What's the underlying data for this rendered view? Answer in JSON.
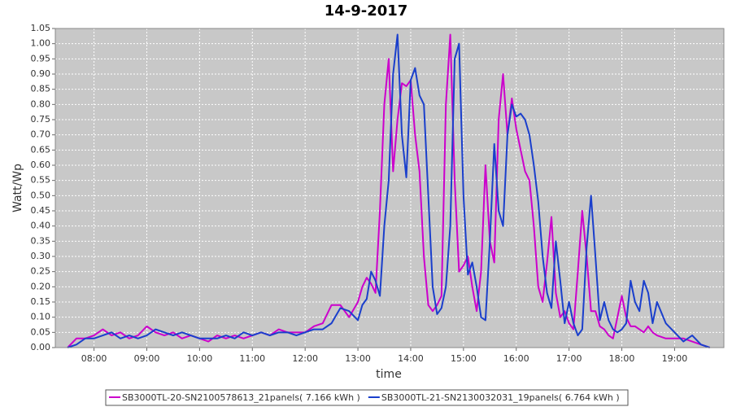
{
  "chart_data": {
    "type": "line",
    "title": "14-9-2017",
    "x_label": "time",
    "y_label": "Watt/Wp",
    "x": [
      "07:30",
      "07:40",
      "07:50",
      "08:00",
      "08:10",
      "08:20",
      "08:30",
      "08:40",
      "08:50",
      "09:00",
      "09:10",
      "09:20",
      "09:30",
      "09:40",
      "09:50",
      "10:00",
      "10:10",
      "10:20",
      "10:30",
      "10:40",
      "10:50",
      "11:00",
      "11:10",
      "11:20",
      "11:30",
      "11:40",
      "11:50",
      "12:00",
      "12:10",
      "12:20",
      "12:30",
      "12:40",
      "12:50",
      "13:00",
      "13:05",
      "13:10",
      "13:15",
      "13:20",
      "13:25",
      "13:30",
      "13:35",
      "13:40",
      "13:45",
      "13:50",
      "13:55",
      "14:00",
      "14:05",
      "14:10",
      "14:15",
      "14:20",
      "14:25",
      "14:30",
      "14:35",
      "14:40",
      "14:45",
      "14:50",
      "14:55",
      "15:00",
      "15:05",
      "15:10",
      "15:15",
      "15:20",
      "15:25",
      "15:30",
      "15:35",
      "15:40",
      "15:45",
      "15:50",
      "15:55",
      "16:00",
      "16:05",
      "16:10",
      "16:15",
      "16:20",
      "16:25",
      "16:30",
      "16:35",
      "16:40",
      "16:45",
      "16:50",
      "16:55",
      "17:00",
      "17:05",
      "17:10",
      "17:15",
      "17:20",
      "17:25",
      "17:30",
      "17:35",
      "17:40",
      "17:45",
      "17:50",
      "17:55",
      "18:00",
      "18:05",
      "18:10",
      "18:15",
      "18:20",
      "18:25",
      "18:30",
      "18:35",
      "18:40",
      "18:50",
      "19:00",
      "19:10",
      "19:20",
      "19:30",
      "19:40"
    ],
    "series": [
      {
        "name": "SB3000TL-20-SN2100578613_21panels( 7.166 kWh )",
        "color": "#cc00cc",
        "values": [
          0.0,
          0.03,
          0.03,
          0.04,
          0.06,
          0.04,
          0.05,
          0.03,
          0.04,
          0.07,
          0.05,
          0.04,
          0.05,
          0.03,
          0.04,
          0.03,
          0.02,
          0.04,
          0.03,
          0.04,
          0.03,
          0.04,
          0.05,
          0.04,
          0.06,
          0.05,
          0.05,
          0.05,
          0.07,
          0.08,
          0.14,
          0.14,
          0.1,
          0.15,
          0.2,
          0.23,
          0.21,
          0.18,
          0.45,
          0.8,
          0.95,
          0.58,
          0.75,
          0.87,
          0.86,
          0.88,
          0.7,
          0.58,
          0.3,
          0.14,
          0.12,
          0.14,
          0.17,
          0.8,
          1.03,
          0.55,
          0.25,
          0.27,
          0.3,
          0.2,
          0.12,
          0.25,
          0.6,
          0.35,
          0.28,
          0.75,
          0.9,
          0.7,
          0.82,
          0.72,
          0.65,
          0.58,
          0.55,
          0.4,
          0.2,
          0.15,
          0.28,
          0.43,
          0.18,
          0.1,
          0.12,
          0.08,
          0.06,
          0.25,
          0.45,
          0.3,
          0.12,
          0.12,
          0.07,
          0.06,
          0.04,
          0.03,
          0.1,
          0.17,
          0.1,
          0.07,
          0.07,
          0.06,
          0.05,
          0.07,
          0.05,
          0.04,
          0.03,
          0.03,
          0.03,
          0.02,
          0.01,
          0.0
        ]
      },
      {
        "name": "SB3000TL-21-SN2130032031_19panels( 6.764 kWh )",
        "color": "#1a3fcc",
        "values": [
          0.0,
          0.01,
          0.03,
          0.03,
          0.04,
          0.05,
          0.03,
          0.04,
          0.03,
          0.04,
          0.06,
          0.05,
          0.04,
          0.05,
          0.04,
          0.03,
          0.03,
          0.03,
          0.04,
          0.03,
          0.05,
          0.04,
          0.05,
          0.04,
          0.05,
          0.05,
          0.04,
          0.05,
          0.06,
          0.06,
          0.08,
          0.13,
          0.12,
          0.09,
          0.14,
          0.16,
          0.25,
          0.22,
          0.17,
          0.4,
          0.55,
          0.9,
          1.03,
          0.7,
          0.56,
          0.88,
          0.92,
          0.83,
          0.8,
          0.5,
          0.2,
          0.11,
          0.13,
          0.2,
          0.4,
          0.95,
          1.0,
          0.5,
          0.24,
          0.28,
          0.2,
          0.1,
          0.09,
          0.35,
          0.67,
          0.45,
          0.4,
          0.7,
          0.8,
          0.76,
          0.77,
          0.75,
          0.7,
          0.6,
          0.48,
          0.3,
          0.18,
          0.13,
          0.35,
          0.22,
          0.08,
          0.15,
          0.08,
          0.04,
          0.06,
          0.33,
          0.5,
          0.3,
          0.09,
          0.15,
          0.09,
          0.06,
          0.05,
          0.06,
          0.08,
          0.22,
          0.15,
          0.12,
          0.22,
          0.18,
          0.08,
          0.15,
          0.08,
          0.05,
          0.02,
          0.04,
          0.01,
          0.0
        ]
      }
    ],
    "xlim": [
      "07:16",
      "19:56"
    ],
    "xticks": [
      "08:00",
      "09:00",
      "10:00",
      "11:00",
      "12:00",
      "13:00",
      "14:00",
      "15:00",
      "16:00",
      "17:00",
      "18:00",
      "19:00"
    ],
    "ylim": [
      0,
      1.05
    ],
    "yticks": [
      {
        "value": 0,
        "label": "0.00"
      },
      0.05,
      {
        "value": 0.1,
        "label": "0.10"
      },
      0.15,
      {
        "value": 0.2,
        "label": "0.20"
      },
      0.25,
      {
        "value": 0.3,
        "label": "0.30"
      },
      0.35,
      {
        "value": 0.4,
        "label": "0.40"
      },
      0.45,
      {
        "value": 0.5,
        "label": "0.50"
      },
      0.55,
      {
        "value": 0.6,
        "label": "0.60"
      },
      0.65,
      {
        "value": 0.7,
        "label": "0.70"
      },
      0.75,
      {
        "value": 0.8,
        "label": "0.80"
      },
      0.85,
      {
        "value": 0.9,
        "label": "0.90"
      },
      0.95,
      {
        "value": 1,
        "label": "1.00"
      },
      1.05
    ],
    "grid": true,
    "legend": "bottom"
  }
}
